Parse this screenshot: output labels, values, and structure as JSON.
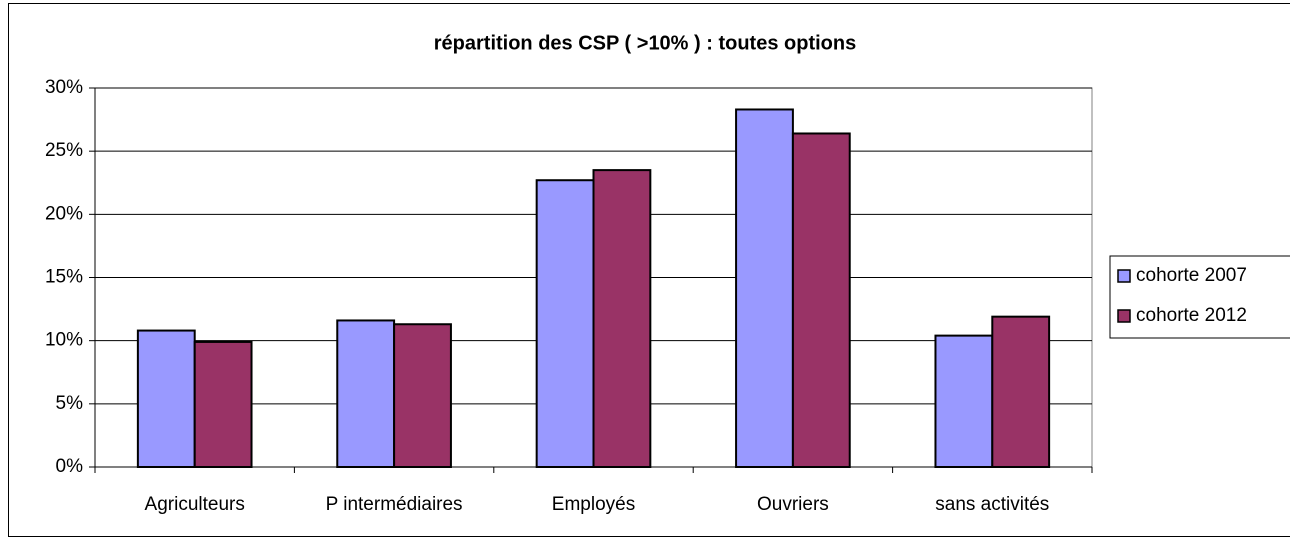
{
  "chart_data": {
    "type": "bar",
    "title": "répartition des CSP ( >10% ) : toutes options",
    "categories": [
      "Agriculteurs",
      "P intermédiaires",
      "Employés",
      "Ouvriers",
      "sans activités"
    ],
    "series": [
      {
        "name": "cohorte 2007",
        "color": "#9999ff",
        "values": [
          10.8,
          11.6,
          22.7,
          28.3,
          10.4
        ]
      },
      {
        "name": "cohorte 2012",
        "color": "#993366",
        "values": [
          9.9,
          11.3,
          23.5,
          26.4,
          11.9
        ]
      }
    ],
    "ylim": [
      0,
      30
    ],
    "yticks": [
      {
        "value": 0,
        "label": "0%"
      },
      {
        "value": 5,
        "label": "5%"
      },
      {
        "value": 10,
        "label": "10%"
      },
      {
        "value": 15,
        "label": "15%"
      },
      {
        "value": 20,
        "label": "20%"
      },
      {
        "value": 25,
        "label": "25%"
      },
      {
        "value": 30,
        "label": "30%"
      }
    ],
    "grid": true,
    "legend": "right"
  }
}
